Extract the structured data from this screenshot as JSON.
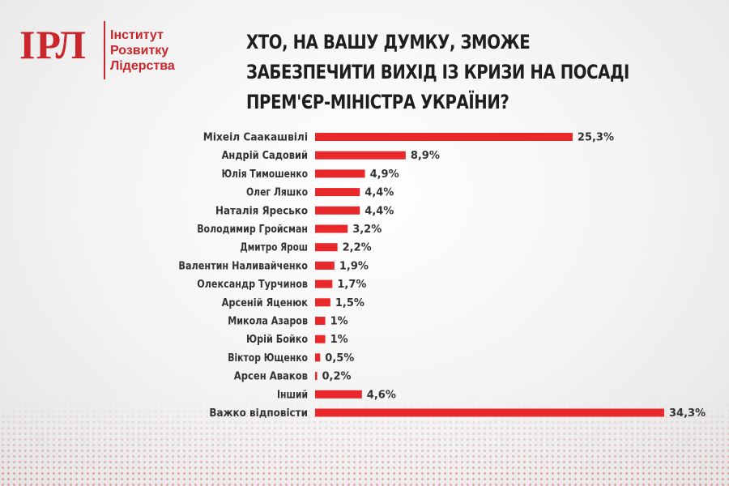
{
  "logo": {
    "mark": "ІРЛ",
    "line1": "Інститут",
    "line2": "Розвитку",
    "line3": "Лідерства"
  },
  "title": {
    "line1": "ХТО, НА ВАШУ ДУМКУ, ЗМОЖЕ",
    "line2": "ЗАБЕЗПЕЧИТИ ВИХІД ІЗ КРИЗИ НА ПОСАДІ",
    "line3": "ПРЕМ'ЄР-МІНІСТРА УКРАЇНИ?"
  },
  "colors": {
    "bar": "#e8282b",
    "brand": "#c8262a"
  },
  "chart_data": {
    "type": "bar",
    "orientation": "horizontal",
    "title": "ХТО, НА ВАШУ ДУМКУ, ЗМОЖЕ ЗАБЕЗПЕЧИТИ ВИХІД ІЗ КРИЗИ НА ПОСАДІ ПРЕМ'ЄР-МІНІСТРА УКРАЇНИ?",
    "categories": [
      "Міхеіл Саакашвілі",
      "Андрій Садовий",
      "Юлія Тимошенко",
      "Олег Ляшко",
      "Наталія Яресько",
      "Володимир Гройсман",
      "Дмитро Ярош",
      "Валентин Наливайченко",
      "Олександр Турчинов",
      "Арсеній Яценюк",
      "Микола Азаров",
      "Юрій Бойко",
      "Віктор Ющенко",
      "Арсен Аваков",
      "Інший",
      "Важко відповісти"
    ],
    "values": [
      25.3,
      8.9,
      4.9,
      4.4,
      4.4,
      3.2,
      2.2,
      1.9,
      1.7,
      1.5,
      1,
      1,
      0.5,
      0.2,
      4.6,
      34.3
    ],
    "value_labels": [
      "25,3%",
      "8,9%",
      "4,9%",
      "4,4%",
      "4,4%",
      "3,2%",
      "2,2%",
      "1,9%",
      "1,7%",
      "1,5%",
      "1%",
      "1%",
      "0,5%",
      "0,2%",
      "4,6%",
      "34,3%"
    ],
    "xlim": [
      0,
      34.3
    ],
    "grid": false,
    "legend": "none"
  }
}
